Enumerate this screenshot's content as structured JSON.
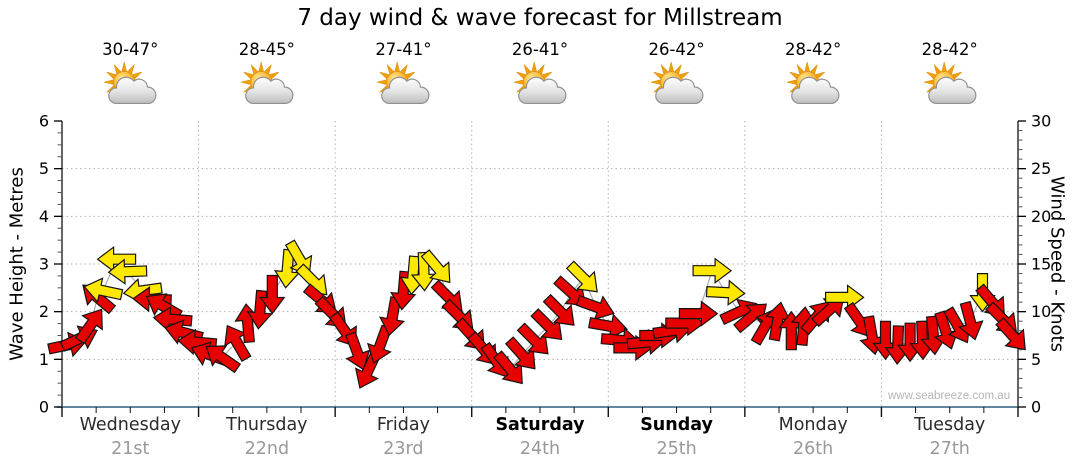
{
  "title": "7 day wind & wave forecast for Millstream",
  "watermark": "www.seabreeze.com.au",
  "chart_data": {
    "type": "scatter",
    "title": "7 day wind & wave forecast for Millstream",
    "left_axis": {
      "label": "Wave Height - Metres",
      "min": 0,
      "max": 6,
      "major_tick_step": 1,
      "minor_tick_step": 0.25
    },
    "right_axis": {
      "label": "Wind Speed - Knots",
      "min": 0,
      "max": 30,
      "major_tick_step": 5,
      "minor_tick_step": 1
    },
    "days": [
      {
        "name": "Wednesday",
        "date": "21st",
        "temp_range": "30-47°",
        "weekend": false
      },
      {
        "name": "Thursday",
        "date": "22nd",
        "temp_range": "28-45°",
        "weekend": false
      },
      {
        "name": "Friday",
        "date": "23rd",
        "temp_range": "27-41°",
        "weekend": false
      },
      {
        "name": "Saturday",
        "date": "24th",
        "temp_range": "26-41°",
        "weekend": true
      },
      {
        "name": "Sunday",
        "date": "25th",
        "temp_range": "26-42°",
        "weekend": true
      },
      {
        "name": "Monday",
        "date": "26th",
        "temp_range": "28-42°",
        "weekend": false
      },
      {
        "name": "Tuesday",
        "date": "27th",
        "temp_range": "28-42°",
        "weekend": false
      }
    ],
    "weather_icon": "sun-behind-cloud",
    "grid": {
      "h_lines_metres": [
        1,
        2,
        3,
        4,
        5
      ],
      "v_lines_day_boundaries": true,
      "style": "dotted"
    },
    "colors": {
      "strong_arrow": "#e60000",
      "moderate_arrow": "#ffe800",
      "arrow_outline": "#141414",
      "x_axis_line": "#2d5f7e",
      "grid": "#b3b3b3",
      "connector": "#ababab"
    },
    "arrows_note": "t = time in days from start (Wed 21st), kn = wind speed in knots, dir = degrees clockwise from east-pointing, c = r(red/strong) or y(yellow/moderate)",
    "arrows": [
      {
        "t": 0.04,
        "kn": 6.5,
        "dir": -12,
        "c": "r"
      },
      {
        "t": 0.13,
        "kn": 7.2,
        "dir": -25,
        "c": "r"
      },
      {
        "t": 0.21,
        "kn": 8.6,
        "dir": -55,
        "c": "r"
      },
      {
        "t": 0.26,
        "kn": 11.5,
        "dir": -140,
        "c": "r"
      },
      {
        "t": 0.3,
        "kn": 12.2,
        "dir": -168,
        "c": "y"
      },
      {
        "t": 0.4,
        "kn": 15.5,
        "dir": 180,
        "c": "y"
      },
      {
        "t": 0.48,
        "kn": 14.2,
        "dir": 178,
        "c": "y"
      },
      {
        "t": 0.59,
        "kn": 12.2,
        "dir": 172,
        "c": "y"
      },
      {
        "t": 0.66,
        "kn": 11.3,
        "dir": -178,
        "c": "r"
      },
      {
        "t": 0.74,
        "kn": 10.6,
        "dir": -150,
        "c": "r"
      },
      {
        "t": 0.81,
        "kn": 9.2,
        "dir": 185,
        "c": "r"
      },
      {
        "t": 0.89,
        "kn": 7.8,
        "dir": 195,
        "c": "r"
      },
      {
        "t": 0.99,
        "kn": 6.8,
        "dir": 185,
        "c": "r"
      },
      {
        "t": 1.08,
        "kn": 5.5,
        "dir": 200,
        "c": "r"
      },
      {
        "t": 1.17,
        "kn": 5.2,
        "dir": 215,
        "c": "r"
      },
      {
        "t": 1.28,
        "kn": 6.8,
        "dir": -120,
        "c": "r"
      },
      {
        "t": 1.36,
        "kn": 8.8,
        "dir": -95,
        "c": "r"
      },
      {
        "t": 1.45,
        "kn": 10.2,
        "dir": 95,
        "c": "r"
      },
      {
        "t": 1.54,
        "kn": 11.8,
        "dir": 90,
        "c": "r"
      },
      {
        "t": 1.65,
        "kn": 14.5,
        "dir": 95,
        "c": "y"
      },
      {
        "t": 1.74,
        "kn": 15.5,
        "dir": 60,
        "c": "y"
      },
      {
        "t": 1.84,
        "kn": 13.2,
        "dir": 45,
        "c": "y"
      },
      {
        "t": 1.9,
        "kn": 11.2,
        "dir": 40,
        "c": "r"
      },
      {
        "t": 1.98,
        "kn": 9.8,
        "dir": 45,
        "c": "r"
      },
      {
        "t": 2.07,
        "kn": 8.0,
        "dir": 55,
        "c": "r"
      },
      {
        "t": 2.16,
        "kn": 5.8,
        "dir": 70,
        "c": "r"
      },
      {
        "t": 2.24,
        "kn": 3.8,
        "dir": 115,
        "c": "r"
      },
      {
        "t": 2.33,
        "kn": 6.5,
        "dir": 110,
        "c": "r"
      },
      {
        "t": 2.42,
        "kn": 9.5,
        "dir": 100,
        "c": "r"
      },
      {
        "t": 2.5,
        "kn": 12.2,
        "dir": 95,
        "c": "r"
      },
      {
        "t": 2.57,
        "kn": 13.8,
        "dir": 95,
        "c": "y"
      },
      {
        "t": 2.65,
        "kn": 14.2,
        "dir": 88,
        "c": "y"
      },
      {
        "t": 2.75,
        "kn": 14.6,
        "dir": 50,
        "c": "y"
      },
      {
        "t": 2.83,
        "kn": 11.5,
        "dir": 45,
        "c": "r"
      },
      {
        "t": 2.91,
        "kn": 9.5,
        "dir": 45,
        "c": "r"
      },
      {
        "t": 3.0,
        "kn": 7.5,
        "dir": 48,
        "c": "r"
      },
      {
        "t": 3.09,
        "kn": 6.0,
        "dir": 50,
        "c": "r"
      },
      {
        "t": 3.18,
        "kn": 4.8,
        "dir": 55,
        "c": "r"
      },
      {
        "t": 3.28,
        "kn": 4.0,
        "dir": 50,
        "c": "r"
      },
      {
        "t": 3.37,
        "kn": 5.5,
        "dir": 48,
        "c": "r"
      },
      {
        "t": 3.46,
        "kn": 7.0,
        "dir": 45,
        "c": "r"
      },
      {
        "t": 3.56,
        "kn": 8.5,
        "dir": 45,
        "c": "r"
      },
      {
        "t": 3.65,
        "kn": 10.0,
        "dir": 45,
        "c": "r"
      },
      {
        "t": 3.73,
        "kn": 12.0,
        "dir": 42,
        "c": "r"
      },
      {
        "t": 3.82,
        "kn": 13.5,
        "dir": 45,
        "c": "y"
      },
      {
        "t": 3.91,
        "kn": 10.5,
        "dir": 20,
        "c": "r"
      },
      {
        "t": 4.0,
        "kn": 8.5,
        "dir": 10,
        "c": "r"
      },
      {
        "t": 4.09,
        "kn": 7.0,
        "dir": 5,
        "c": "r"
      },
      {
        "t": 4.18,
        "kn": 6.2,
        "dir": 0,
        "c": "r"
      },
      {
        "t": 4.28,
        "kn": 6.8,
        "dir": -5,
        "c": "r"
      },
      {
        "t": 4.37,
        "kn": 7.5,
        "dir": 0,
        "c": "r"
      },
      {
        "t": 4.47,
        "kn": 8.0,
        "dir": -8,
        "c": "r"
      },
      {
        "t": 4.56,
        "kn": 8.8,
        "dir": 0,
        "c": "r"
      },
      {
        "t": 4.66,
        "kn": 9.8,
        "dir": 0,
        "c": "r"
      },
      {
        "t": 4.76,
        "kn": 14.3,
        "dir": 0,
        "c": "y"
      },
      {
        "t": 4.86,
        "kn": 12.0,
        "dir": 3,
        "c": "y"
      },
      {
        "t": 4.96,
        "kn": 10.0,
        "dir": -25,
        "c": "r"
      },
      {
        "t": 5.05,
        "kn": 9.5,
        "dir": -40,
        "c": "r"
      },
      {
        "t": 5.15,
        "kn": 8.5,
        "dir": -60,
        "c": "r"
      },
      {
        "t": 5.24,
        "kn": 9.0,
        "dir": -80,
        "c": "r"
      },
      {
        "t": 5.34,
        "kn": 8.0,
        "dir": -90,
        "c": "r"
      },
      {
        "t": 5.43,
        "kn": 8.5,
        "dir": -85,
        "c": "r"
      },
      {
        "t": 5.53,
        "kn": 9.5,
        "dir": -50,
        "c": "r"
      },
      {
        "t": 5.62,
        "kn": 10.2,
        "dir": -42,
        "c": "r"
      },
      {
        "t": 5.73,
        "kn": 11.5,
        "dir": 0,
        "c": "y"
      },
      {
        "t": 5.84,
        "kn": 9.0,
        "dir": 55,
        "c": "r"
      },
      {
        "t": 5.93,
        "kn": 7.5,
        "dir": 80,
        "c": "r"
      },
      {
        "t": 6.03,
        "kn": 7.0,
        "dir": 90,
        "c": "r"
      },
      {
        "t": 6.12,
        "kn": 6.5,
        "dir": 92,
        "c": "r"
      },
      {
        "t": 6.21,
        "kn": 6.8,
        "dir": 90,
        "c": "r"
      },
      {
        "t": 6.3,
        "kn": 7.0,
        "dir": 88,
        "c": "r"
      },
      {
        "t": 6.38,
        "kn": 7.5,
        "dir": 85,
        "c": "r"
      },
      {
        "t": 6.47,
        "kn": 8.0,
        "dir": 72,
        "c": "r"
      },
      {
        "t": 6.56,
        "kn": 8.5,
        "dir": 60,
        "c": "r"
      },
      {
        "t": 6.65,
        "kn": 9.0,
        "dir": 75,
        "c": "r"
      },
      {
        "t": 6.74,
        "kn": 12.0,
        "dir": 90,
        "c": "y"
      },
      {
        "t": 6.81,
        "kn": 11.0,
        "dir": 50,
        "c": "r"
      },
      {
        "t": 6.89,
        "kn": 9.2,
        "dir": 45,
        "c": "r"
      },
      {
        "t": 6.96,
        "kn": 7.5,
        "dir": 48,
        "c": "r"
      }
    ]
  }
}
